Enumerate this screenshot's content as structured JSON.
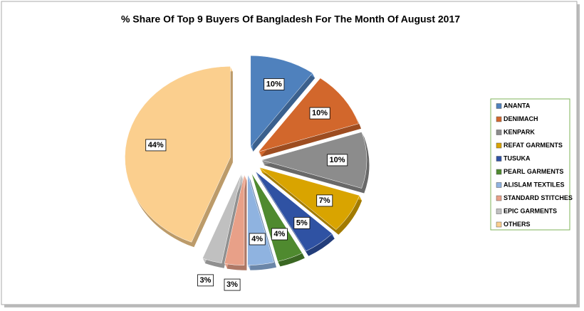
{
  "chart_data": {
    "type": "pie",
    "title": "% Share Of Top 9 Buyers Of Bangladesh For The Month Of August 2017",
    "categories": [
      "ANANTA",
      "DENIMACH",
      "KENPARK",
      "REFAT GARMENTS",
      "TUSUKA",
      "PEARL GARMENTS",
      "ALISLAM TEXTILES",
      "STANDARD STITCHES",
      "EPIC GARMENTS",
      "OTHERS"
    ],
    "values": [
      10,
      10,
      10,
      7,
      5,
      4,
      4,
      3,
      3,
      44
    ],
    "value_labels": [
      "10%",
      "10%",
      "10%",
      "7%",
      "5%",
      "4%",
      "4%",
      "3%",
      "3%",
      "44%"
    ],
    "colors": [
      "#4f81bd",
      "#d2672c",
      "#8c8c8c",
      "#d9a400",
      "#2f52a3",
      "#4f8a2f",
      "#8fb3e0",
      "#e8a088",
      "#c0c0c0",
      "#fbcf8e"
    ],
    "legend": "right"
  }
}
